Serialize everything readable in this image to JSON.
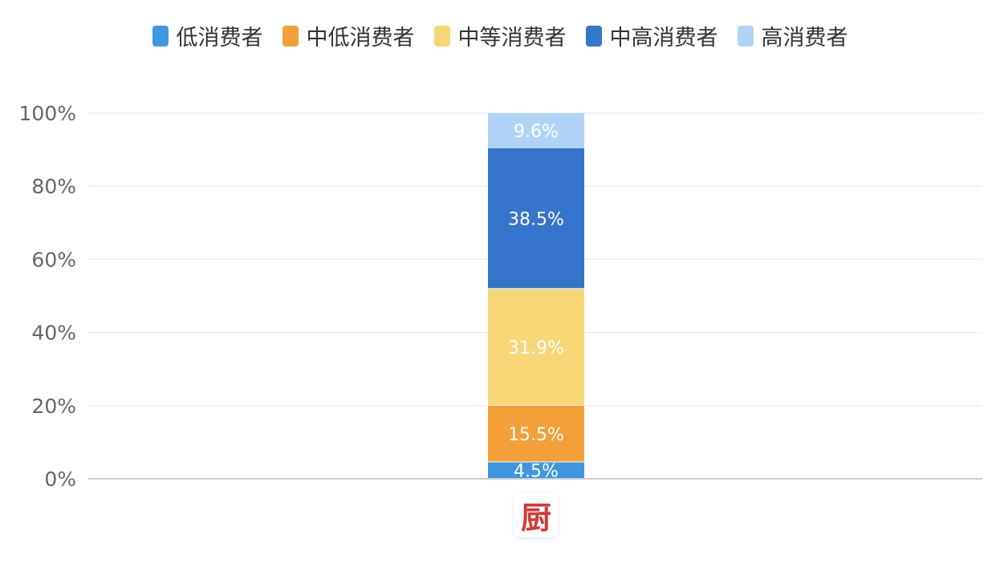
{
  "chart_data": {
    "type": "bar",
    "stacked": true,
    "categories": [
      "厨"
    ],
    "series": [
      {
        "name": "低消费者",
        "values": [
          4.5
        ],
        "color": "#3e97e0",
        "label": "4.5%"
      },
      {
        "name": "中低消费者",
        "values": [
          15.5
        ],
        "color": "#f2a037",
        "label": "15.5%"
      },
      {
        "name": "中等消费者",
        "values": [
          31.9
        ],
        "color": "#f7d676",
        "label": "31.9%"
      },
      {
        "name": "中高消费者",
        "values": [
          38.5
        ],
        "color": "#3675cc",
        "label": "38.5%"
      },
      {
        "name": "高消费者",
        "values": [
          9.6
        ],
        "color": "#b0d4f7",
        "label": "9.6%"
      }
    ],
    "ylim": [
      0,
      100
    ],
    "yticks": [
      "0%",
      "20%",
      "40%",
      "60%",
      "80%",
      "100%"
    ],
    "grid": true,
    "legend": "top-center",
    "category_icon": "logo-icon"
  }
}
